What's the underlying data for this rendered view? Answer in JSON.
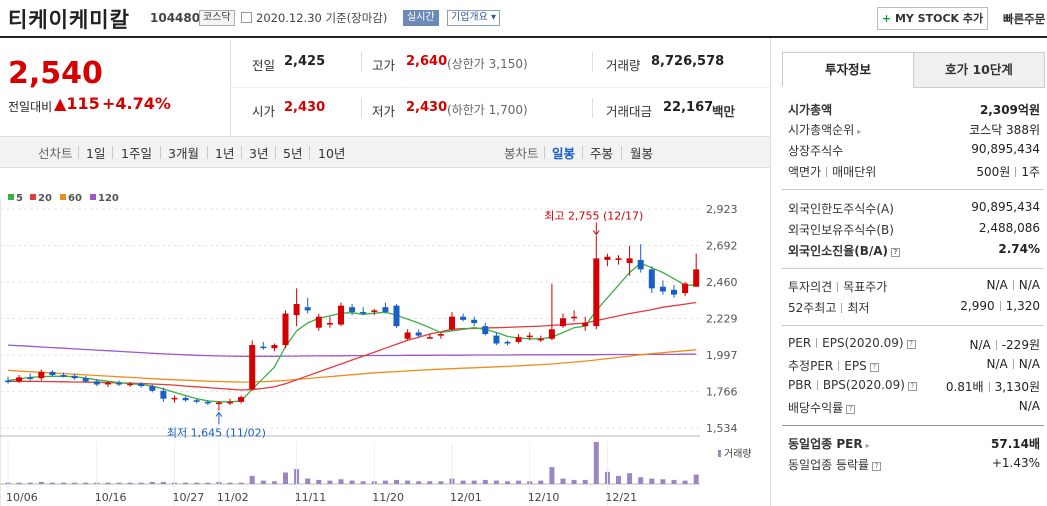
{
  "header": {
    "stock_name": "티케이케미칼",
    "stock_code": "104480",
    "market": "코스닥",
    "date_text": "2020.12.30 기준(장마감)",
    "live_label": "실시간",
    "company_label": "기업개요 ▾",
    "mystock_label": "MY STOCK 추가",
    "mystock_plus": "+",
    "quick_order": "빠른주문"
  },
  "quote": {
    "price": "2,540",
    "change_label": "전일대비",
    "change_arrow": "▲",
    "change_value": "115",
    "change_percent": "+4.74%",
    "prev_close_label": "전일",
    "prev_close": "2,425",
    "high_label": "고가",
    "high": "2,640",
    "upper_limit": "(상한가 3,150)",
    "volume_label": "거래량",
    "volume": "8,726,578",
    "open_label": "시가",
    "open": "2,430",
    "low_label": "저가",
    "low": "2,430",
    "lower_limit": "(하한가 1,700)",
    "amount_label": "거래대금",
    "amount": "22,167",
    "amount_unit": "백만"
  },
  "period_bar": {
    "line_label": "선차트",
    "line_periods": [
      "1일",
      "1주일",
      "3개월",
      "1년",
      "3년",
      "5년",
      "10년"
    ],
    "candle_label": "봉차트",
    "candle_periods": [
      "일봉",
      "주봉",
      "월봉"
    ],
    "active_candle": "일봉"
  },
  "colors": {
    "up": "#d60000",
    "down": "#1a5fc4",
    "ma5": "#3cb043",
    "ma20": "#e03c3c",
    "ma60": "#f08c1e",
    "ma120": "#9b59c6"
  },
  "chart_data": {
    "type": "candlestick",
    "legend": [
      "5",
      "20",
      "60",
      "120"
    ],
    "y_ticks": [
      "2,923",
      "2,692",
      "2,460",
      "2,229",
      "1,997",
      "1,766",
      "1,534"
    ],
    "ylim": [
      1534,
      2923
    ],
    "x_ticks": [
      "10/06",
      "10/16",
      "10/27",
      "11/02",
      "11/11",
      "11/20",
      "12/01",
      "12/10",
      "12/21"
    ],
    "x_tick_index": [
      0,
      8,
      15,
      19,
      26,
      33,
      40,
      47,
      54
    ],
    "high_annotation": "최고 2,755 (12/17)",
    "low_annotation": "최저 1,645 (11/02)",
    "volume_label": "거래량",
    "candles": [
      {
        "o": 1835,
        "h": 1860,
        "l": 1815,
        "c": 1825
      },
      {
        "o": 1830,
        "h": 1870,
        "l": 1820,
        "c": 1855
      },
      {
        "o": 1855,
        "h": 1880,
        "l": 1835,
        "c": 1845
      },
      {
        "o": 1850,
        "h": 1905,
        "l": 1835,
        "c": 1890
      },
      {
        "o": 1890,
        "h": 1900,
        "l": 1860,
        "c": 1870
      },
      {
        "o": 1870,
        "h": 1885,
        "l": 1855,
        "c": 1860
      },
      {
        "o": 1865,
        "h": 1875,
        "l": 1840,
        "c": 1850
      },
      {
        "o": 1850,
        "h": 1865,
        "l": 1820,
        "c": 1830
      },
      {
        "o": 1830,
        "h": 1845,
        "l": 1800,
        "c": 1810
      },
      {
        "o": 1815,
        "h": 1830,
        "l": 1795,
        "c": 1820
      },
      {
        "o": 1820,
        "h": 1835,
        "l": 1800,
        "c": 1810
      },
      {
        "o": 1810,
        "h": 1825,
        "l": 1795,
        "c": 1815
      },
      {
        "o": 1815,
        "h": 1825,
        "l": 1790,
        "c": 1800
      },
      {
        "o": 1800,
        "h": 1810,
        "l": 1760,
        "c": 1770
      },
      {
        "o": 1770,
        "h": 1790,
        "l": 1700,
        "c": 1720
      },
      {
        "o": 1720,
        "h": 1740,
        "l": 1695,
        "c": 1725
      },
      {
        "o": 1725,
        "h": 1735,
        "l": 1700,
        "c": 1710
      },
      {
        "o": 1710,
        "h": 1720,
        "l": 1690,
        "c": 1700
      },
      {
        "o": 1700,
        "h": 1710,
        "l": 1680,
        "c": 1690
      },
      {
        "o": 1690,
        "h": 1705,
        "l": 1645,
        "c": 1695
      },
      {
        "o": 1695,
        "h": 1720,
        "l": 1680,
        "c": 1700
      },
      {
        "o": 1700,
        "h": 1740,
        "l": 1690,
        "c": 1730
      },
      {
        "o": 1780,
        "h": 2090,
        "l": 1770,
        "c": 2060
      },
      {
        "o": 2050,
        "h": 2080,
        "l": 2030,
        "c": 2045
      },
      {
        "o": 2040,
        "h": 2070,
        "l": 2020,
        "c": 2060
      },
      {
        "o": 2060,
        "h": 2280,
        "l": 2040,
        "c": 2260
      },
      {
        "o": 2250,
        "h": 2420,
        "l": 2180,
        "c": 2320
      },
      {
        "o": 2300,
        "h": 2360,
        "l": 2260,
        "c": 2280
      },
      {
        "o": 2170,
        "h": 2260,
        "l": 2150,
        "c": 2240
      },
      {
        "o": 2190,
        "h": 2240,
        "l": 2170,
        "c": 2200
      },
      {
        "o": 2190,
        "h": 2330,
        "l": 2180,
        "c": 2310
      },
      {
        "o": 2300,
        "h": 2320,
        "l": 2250,
        "c": 2270
      },
      {
        "o": 2270,
        "h": 2300,
        "l": 2250,
        "c": 2260
      },
      {
        "o": 2270,
        "h": 2290,
        "l": 2250,
        "c": 2280
      },
      {
        "o": 2300,
        "h": 2330,
        "l": 2260,
        "c": 2270
      },
      {
        "o": 2310,
        "h": 2320,
        "l": 2170,
        "c": 2180
      },
      {
        "o": 2100,
        "h": 2160,
        "l": 2090,
        "c": 2140
      },
      {
        "o": 2140,
        "h": 2160,
        "l": 2110,
        "c": 2120
      },
      {
        "o": 2110,
        "h": 2130,
        "l": 2100,
        "c": 2110
      },
      {
        "o": 2120,
        "h": 2140,
        "l": 2100,
        "c": 2130
      },
      {
        "o": 2160,
        "h": 2270,
        "l": 2150,
        "c": 2240
      },
      {
        "o": 2240,
        "h": 2260,
        "l": 2210,
        "c": 2220
      },
      {
        "o": 2220,
        "h": 2240,
        "l": 2180,
        "c": 2200
      },
      {
        "o": 2180,
        "h": 2200,
        "l": 2120,
        "c": 2130
      },
      {
        "o": 2120,
        "h": 2140,
        "l": 2060,
        "c": 2070
      },
      {
        "o": 2080,
        "h": 2090,
        "l": 2060,
        "c": 2070
      },
      {
        "o": 2080,
        "h": 2130,
        "l": 2070,
        "c": 2110
      },
      {
        "o": 2110,
        "h": 2140,
        "l": 2090,
        "c": 2120
      },
      {
        "o": 2090,
        "h": 2120,
        "l": 2080,
        "c": 2100
      },
      {
        "o": 2100,
        "h": 2450,
        "l": 2090,
        "c": 2160
      },
      {
        "o": 2180,
        "h": 2260,
        "l": 2170,
        "c": 2230
      },
      {
        "o": 2230,
        "h": 2280,
        "l": 2210,
        "c": 2240
      },
      {
        "o": 2180,
        "h": 2240,
        "l": 2150,
        "c": 2200
      },
      {
        "o": 2180,
        "h": 2755,
        "l": 2160,
        "c": 2610
      },
      {
        "o": 2600,
        "h": 2640,
        "l": 2560,
        "c": 2620
      },
      {
        "o": 2600,
        "h": 2630,
        "l": 2570,
        "c": 2610
      },
      {
        "o": 2580,
        "h": 2690,
        "l": 2500,
        "c": 2610
      },
      {
        "o": 2600,
        "h": 2700,
        "l": 2520,
        "c": 2540
      },
      {
        "o": 2540,
        "h": 2560,
        "l": 2390,
        "c": 2420
      },
      {
        "o": 2430,
        "h": 2470,
        "l": 2380,
        "c": 2400
      },
      {
        "o": 2410,
        "h": 2440,
        "l": 2360,
        "c": 2380
      },
      {
        "o": 2390,
        "h": 2460,
        "l": 2370,
        "c": 2450
      },
      {
        "o": 2430,
        "h": 2640,
        "l": 2430,
        "c": 2540
      }
    ],
    "ma5": [
      1835,
      1845,
      1855,
      1860,
      1862,
      1862,
      1860,
      1850,
      1840,
      1830,
      1822,
      1815,
      1810,
      1800,
      1782,
      1760,
      1740,
      1720,
      1706,
      1700,
      1700,
      1705,
      1780,
      1850,
      1920,
      2050,
      2150,
      2200,
      2230,
      2245,
      2262,
      2265,
      2255,
      2262,
      2268,
      2250,
      2225,
      2200,
      2170,
      2140,
      2150,
      2160,
      2170,
      2160,
      2140,
      2115,
      2105,
      2100,
      2100,
      2110,
      2140,
      2170,
      2180,
      2280,
      2360,
      2440,
      2520,
      2580,
      2550,
      2520,
      2480,
      2440,
      2440
    ],
    "ma20": [
      1830,
      1830,
      1830,
      1829,
      1828,
      1827,
      1826,
      1825,
      1824,
      1822,
      1820,
      1818,
      1816,
      1813,
      1810,
      1806,
      1800,
      1795,
      1790,
      1785,
      1780,
      1775,
      1778,
      1785,
      1795,
      1815,
      1840,
      1865,
      1890,
      1915,
      1940,
      1965,
      1990,
      2015,
      2040,
      2065,
      2090,
      2110,
      2130,
      2145,
      2160,
      2165,
      2165,
      2168,
      2170,
      2172,
      2175,
      2178,
      2180,
      2185,
      2190,
      2195,
      2200,
      2215,
      2230,
      2245,
      2260,
      2272,
      2285,
      2300,
      2310,
      2320,
      2330
    ],
    "ma60": [
      1900,
      1895,
      1891,
      1887,
      1883,
      1879,
      1875,
      1871,
      1867,
      1863,
      1859,
      1855,
      1851,
      1847,
      1843,
      1840,
      1837,
      1834,
      1831,
      1829,
      1827,
      1825,
      1826,
      1828,
      1831,
      1836,
      1842,
      1848,
      1854,
      1860,
      1866,
      1872,
      1878,
      1884,
      1888,
      1892,
      1896,
      1900,
      1904,
      1907,
      1910,
      1913,
      1916,
      1919,
      1922,
      1925,
      1928,
      1932,
      1936,
      1940,
      1946,
      1952,
      1958,
      1966,
      1974,
      1982,
      1990,
      1998,
      2006,
      2012,
      2018,
      2024,
      2030
    ],
    "ma120": [
      2060,
      2056,
      2052,
      2048,
      2044,
      2040,
      2036,
      2032,
      2028,
      2024,
      2020,
      2016,
      2012,
      2008,
      2004,
      2001,
      1998,
      1995,
      1993,
      1991,
      1990,
      1989,
      1989,
      1989,
      1989,
      1990,
      1990,
      1991,
      1991,
      1992,
      1992,
      1993,
      1993,
      1994,
      1994,
      1994,
      1995,
      1995,
      1995,
      1996,
      1996,
      1996,
      1997,
      1997,
      1997,
      1997,
      1998,
      1998,
      1998,
      1998,
      1999,
      1999,
      1999,
      1999,
      2000,
      2000,
      2000,
      2000,
      2001,
      2001,
      2001,
      2002,
      2002
    ],
    "volume": [
      2,
      2,
      2,
      3,
      2,
      2,
      2,
      2,
      2,
      2,
      2,
      2,
      2,
      3,
      3,
      2,
      2,
      2,
      2,
      3,
      2,
      2,
      12,
      5,
      4,
      17,
      22,
      8,
      6,
      5,
      7,
      5,
      4,
      4,
      5,
      6,
      5,
      4,
      4,
      4,
      8,
      5,
      5,
      6,
      5,
      4,
      5,
      4,
      5,
      25,
      8,
      6,
      6,
      62,
      18,
      12,
      16,
      10,
      8,
      7,
      6,
      5,
      14
    ]
  },
  "invest_panel": {
    "tab_invest": "투자정보",
    "tab_hoga": "호가 10단계",
    "market_cap_label": "시가총액",
    "market_cap": "2,309억원",
    "market_cap_rank_label": "시가총액순위",
    "market_cap_rank": "코스닥 388위",
    "shares_label": "상장주식수",
    "shares": "90,895,434",
    "par_label": "액면가",
    "unit_label": "매매단위",
    "par": "500원",
    "unit": "1주",
    "foreign_limit_label": "외국인한도주식수(A)",
    "foreign_limit": "90,895,434",
    "foreign_hold_label": "외국인보유주식수(B)",
    "foreign_hold": "2,488,086",
    "foreign_ratio_label": "외국인소진율(B/A)",
    "foreign_ratio": "2.74%",
    "opinion_label": "투자의견",
    "target_label": "목표주가",
    "opinion": "N/A",
    "target": "N/A",
    "w52_high_label": "52주최고",
    "w52_low_label": "최저",
    "w52_high": "2,990",
    "w52_low": "1,320",
    "per_label": "PER",
    "eps_label": "EPS(2020.09)",
    "per": "N/A",
    "eps": "-229원",
    "est_per_label": "추정PER",
    "est_eps_label": "EPS",
    "est_per": "N/A",
    "est_eps": "N/A",
    "pbr_label": "PBR",
    "bps_label": "BPS(2020.09)",
    "pbr": "0.81배",
    "bps": "3,130원",
    "dividend_label": "배당수익률",
    "dividend": "N/A",
    "sector_per_label": "동일업종 PER",
    "sector_per": "57.14배",
    "sector_change_label": "동일업종 등락률",
    "sector_change": "+1.43%"
  }
}
